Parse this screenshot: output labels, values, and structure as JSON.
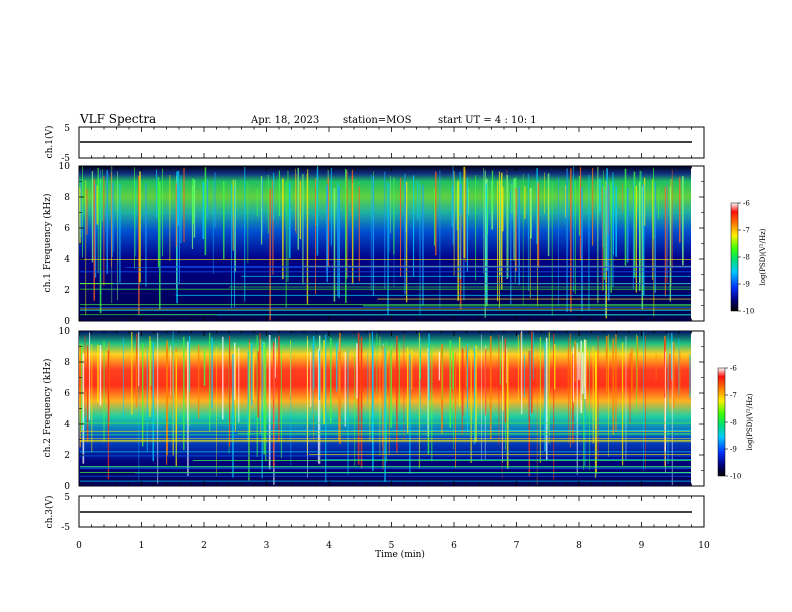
{
  "header": {
    "title": "VLF Spectra",
    "date": "Apr. 18, 2023",
    "station": "station=MOS",
    "start_ut": "start  UT =   4 : 10: 1"
  },
  "chart_data": [
    {
      "type": "line",
      "panel": "ch1-waveform",
      "ylabel": "ch.1(V)",
      "ylim": [
        -5,
        5
      ],
      "y_ticks": [
        "5",
        "-5"
      ],
      "x": [
        0,
        9.8
      ],
      "values": [
        -1.2,
        -1.2
      ]
    },
    {
      "type": "heatmap",
      "panel": "ch1-spectrogram",
      "ylabel": "ch.1 Frequency (kHz)",
      "ylim": [
        0,
        10
      ],
      "y_ticks": [
        "0",
        "2",
        "4",
        "6",
        "8",
        "10"
      ],
      "xlim": [
        0,
        10
      ],
      "colorbar": {
        "label": "log(PSD)(V²/Hz)",
        "range": [
          -10,
          -6
        ],
        "ticks": [
          "-6",
          "-7",
          "-8",
          "-9",
          "-10"
        ]
      }
    },
    {
      "type": "heatmap",
      "panel": "ch2-spectrogram",
      "ylabel": "ch.2 Frequency (kHz)",
      "ylim": [
        0,
        10
      ],
      "y_ticks": [
        "0",
        "2",
        "4",
        "6",
        "8",
        "10"
      ],
      "xlim": [
        0,
        10
      ],
      "colorbar": {
        "label": "log(PSD)(V²/Hz)",
        "range": [
          -10,
          -6
        ],
        "ticks": [
          "-6",
          "-7",
          "-8",
          "-9",
          "-10"
        ]
      }
    },
    {
      "type": "line",
      "panel": "ch3-waveform",
      "ylabel": "ch.3(V)",
      "ylim": [
        -5,
        5
      ],
      "y_ticks": [
        "5",
        "-5"
      ],
      "x": [
        0,
        9.8
      ],
      "values": [
        -1.0,
        -1.0
      ]
    }
  ],
  "x_axis": {
    "label": "Time  (min)",
    "ticks": [
      "0",
      "1",
      "2",
      "3",
      "4",
      "5",
      "6",
      "7",
      "8",
      "9",
      "10"
    ]
  }
}
